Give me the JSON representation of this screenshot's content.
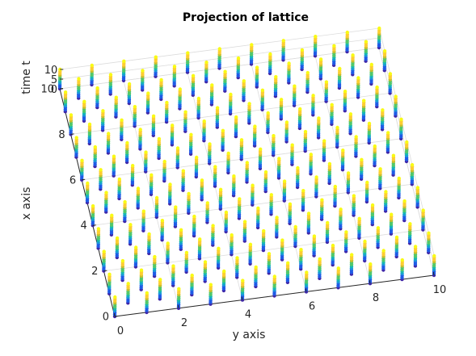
{
  "chart_data": {
    "type": "scatter3d",
    "title": "Projection of lattice",
    "xlabel": "x axis",
    "ylabel": "y axis",
    "zlabel": "time t",
    "xlim": [
      0,
      10
    ],
    "ylim": [
      0,
      10
    ],
    "zlim": [
      0,
      10
    ],
    "x_ticks": [
      "0",
      "2",
      "4",
      "6",
      "8",
      "10"
    ],
    "y_ticks": [
      "0",
      "2",
      "4",
      "6",
      "8",
      "10"
    ],
    "z_ticks": [
      "0",
      "5",
      "10"
    ],
    "grid": true,
    "lattice": {
      "columns_x": [
        0,
        0.5,
        1,
        1.5,
        2,
        2.5,
        3,
        3.5,
        4,
        4.5,
        5,
        5.5,
        6,
        6.5,
        7,
        7.5,
        8,
        8.5,
        9,
        9.5,
        10
      ],
      "columns_y": [
        0,
        0.5,
        1,
        1.5,
        2,
        2.5,
        3,
        3.5,
        4,
        4.5,
        5,
        5.5,
        6,
        6.5,
        7,
        7.5,
        8,
        8.5,
        9,
        9.5,
        10
      ],
      "t_values": [
        0,
        1,
        2,
        3,
        4,
        5,
        6,
        7,
        8,
        9,
        10
      ]
    },
    "colormap": [
      "#3e26a8",
      "#1f5ae6",
      "#1a98d9",
      "#15b8b3",
      "#52c86b",
      "#c6be2e",
      "#fdcd32",
      "#f9fb15"
    ]
  }
}
